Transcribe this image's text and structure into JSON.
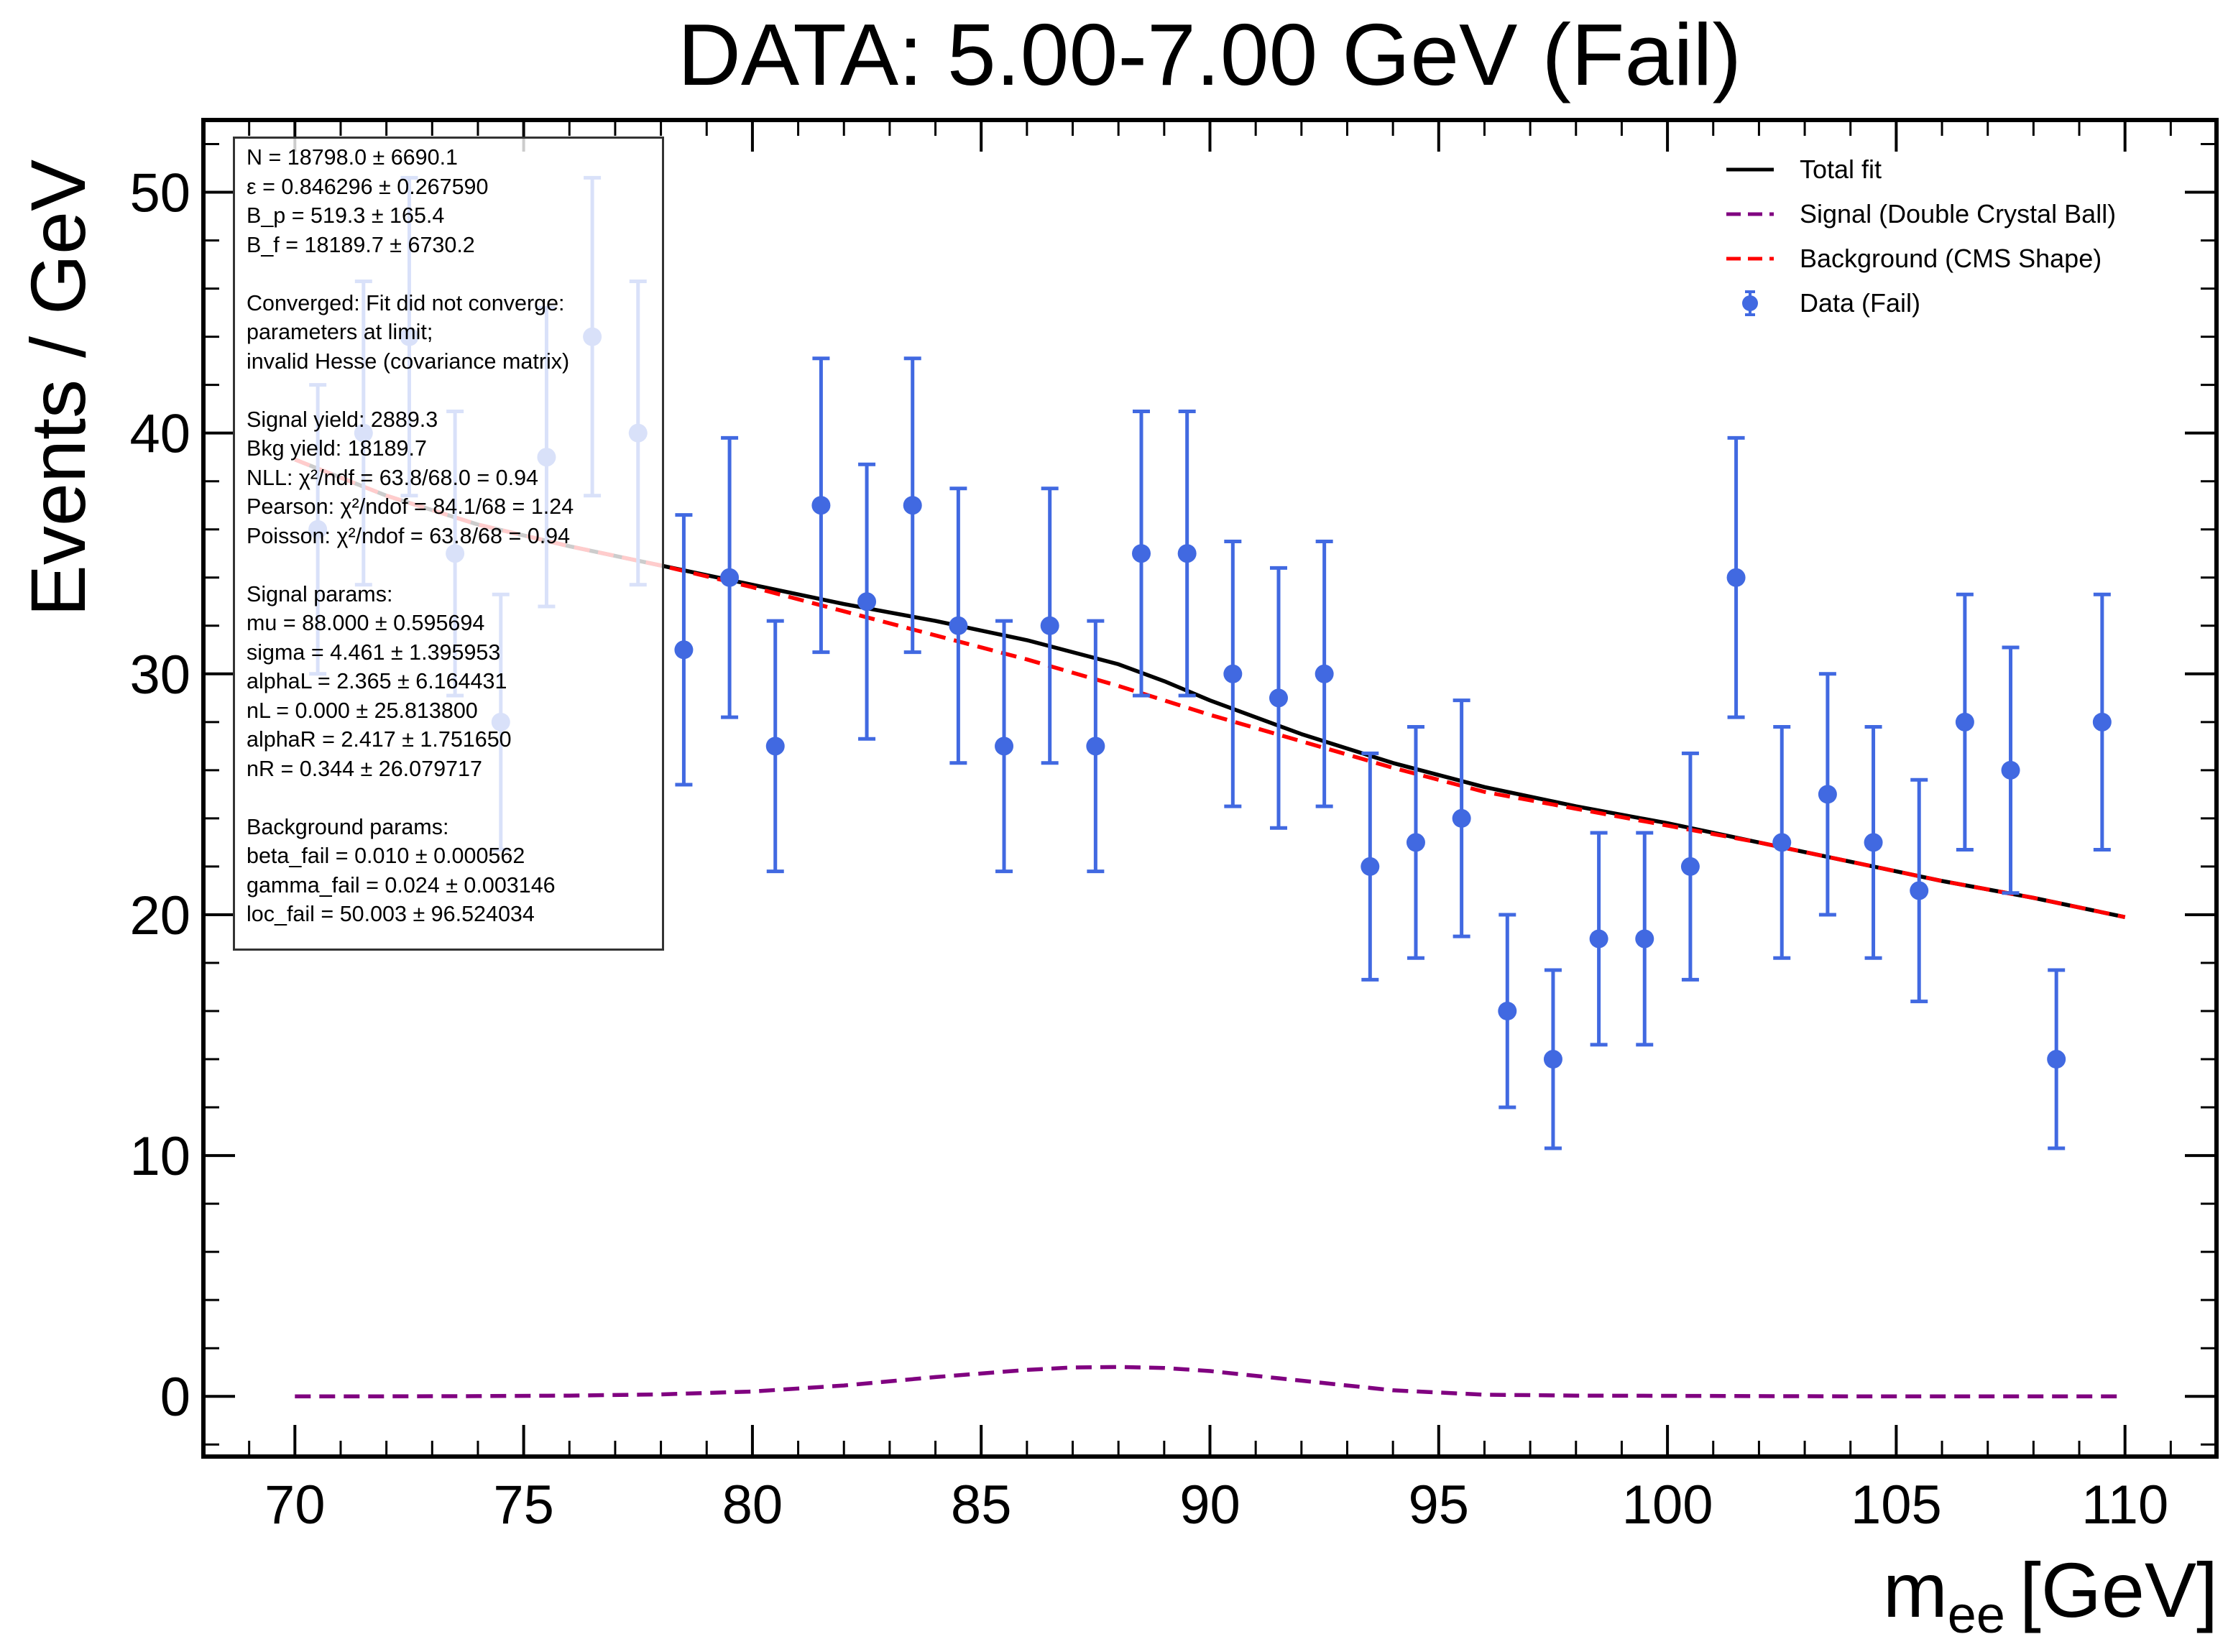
{
  "chart_data": {
    "type": "scatter",
    "title": "DATA: 5.00-7.00 GeV (Fail)",
    "xlabel_main": "m",
    "xlabel_sub": "ee",
    "xlabel_unit": "[GeV]",
    "ylabel": "Events / GeV",
    "xlim": [
      68,
      112
    ],
    "ylim": [
      -2.5,
      53
    ],
    "x_ticks": [
      70,
      75,
      80,
      85,
      90,
      95,
      100,
      105,
      110
    ],
    "y_ticks": [
      0,
      10,
      20,
      30,
      40,
      50
    ],
    "grid": false,
    "legend_position": "top-right",
    "series": [
      {
        "name": "Total fit",
        "kind": "line",
        "color": "#000000",
        "dash": "solid",
        "x": [
          70,
          72,
          74,
          76,
          78,
          80,
          82,
          84,
          86,
          88,
          89,
          90,
          92,
          94,
          96,
          98,
          100,
          102,
          104,
          106,
          108,
          110
        ],
        "y": [
          38.9,
          37.4,
          36.2,
          35.3,
          34.5,
          33.7,
          32.9,
          32.2,
          31.4,
          30.4,
          29.7,
          28.9,
          27.5,
          26.3,
          25.3,
          24.5,
          23.8,
          23.0,
          22.2,
          21.4,
          20.7,
          19.9
        ]
      },
      {
        "name": "Signal (Double Crystal Ball)",
        "kind": "line",
        "color": "#800080",
        "dash": "dashed",
        "x": [
          70,
          72,
          74,
          76,
          78,
          80,
          82,
          84,
          86,
          87,
          88,
          89,
          90,
          92,
          94,
          96,
          98,
          100,
          102,
          104,
          106,
          108,
          110
        ],
        "y": [
          0.0,
          0.0,
          0.01,
          0.03,
          0.08,
          0.2,
          0.45,
          0.8,
          1.1,
          1.2,
          1.22,
          1.18,
          1.05,
          0.65,
          0.25,
          0.07,
          0.03,
          0.02,
          0.01,
          0.0,
          0.0,
          0.0,
          0.0
        ]
      },
      {
        "name": "Background (CMS Shape)",
        "kind": "line",
        "color": "#ff0000",
        "dash": "dashed",
        "x": [
          70,
          72,
          74,
          76,
          78,
          80,
          82,
          84,
          86,
          88,
          90,
          92,
          94,
          96,
          98,
          100,
          102,
          104,
          106,
          108,
          110
        ],
        "y": [
          38.9,
          37.4,
          36.2,
          35.3,
          34.5,
          33.6,
          32.6,
          31.6,
          30.6,
          29.5,
          28.3,
          27.2,
          26.1,
          25.1,
          24.4,
          23.7,
          23.0,
          22.2,
          21.4,
          20.7,
          19.9
        ]
      },
      {
        "name": "Data (Fail)",
        "kind": "errorbar",
        "color": "#4169e1",
        "x": [
          70.5,
          71.5,
          72.5,
          73.5,
          74.5,
          75.5,
          76.5,
          77.5,
          78.5,
          79.5,
          80.5,
          81.5,
          82.5,
          83.5,
          84.5,
          85.5,
          86.5,
          87.5,
          88.5,
          89.5,
          90.5,
          91.5,
          92.5,
          93.5,
          94.5,
          95.5,
          96.5,
          97.5,
          98.5,
          99.5,
          100.5,
          101.5,
          102.5,
          103.5,
          104.5,
          105.5,
          106.5,
          107.5,
          108.5,
          109.5
        ],
        "y": [
          36,
          40,
          44,
          35,
          28,
          39,
          44,
          40,
          31,
          34,
          27,
          37,
          33,
          37,
          32,
          27,
          32,
          27,
          35,
          35,
          30,
          29,
          30,
          22,
          23,
          24,
          16,
          14,
          19,
          19,
          22,
          34,
          23,
          25,
          23,
          21,
          28,
          26,
          14,
          28
        ],
        "yerr_low": [
          6.0,
          6.3,
          6.6,
          5.9,
          5.3,
          6.2,
          6.6,
          6.3,
          5.6,
          5.8,
          5.2,
          6.1,
          5.7,
          6.1,
          5.7,
          5.2,
          5.7,
          5.2,
          5.9,
          5.9,
          5.5,
          5.4,
          5.5,
          4.7,
          4.8,
          4.9,
          4.0,
          3.7,
          4.4,
          4.4,
          4.7,
          5.8,
          4.8,
          5.0,
          4.8,
          4.6,
          5.3,
          5.1,
          3.7,
          5.3
        ],
        "yerr_high": [
          6.0,
          6.3,
          6.6,
          5.9,
          5.3,
          6.2,
          6.6,
          6.3,
          5.6,
          5.8,
          5.2,
          6.1,
          5.7,
          6.1,
          5.7,
          5.2,
          5.7,
          5.2,
          5.9,
          5.9,
          5.5,
          5.4,
          5.5,
          4.7,
          4.8,
          4.9,
          4.0,
          3.7,
          4.4,
          4.4,
          4.7,
          5.8,
          4.8,
          5.0,
          4.8,
          4.6,
          5.3,
          5.1,
          3.7,
          5.3
        ]
      }
    ],
    "annotation_lines": [
      "N = 18798.0 ± 6690.1",
      "ε = 0.846296 ± 0.267590",
      "B_p = 519.3 ± 165.4",
      "B_f = 18189.7 ± 6730.2",
      "",
      "Converged: Fit did not converge:",
      "parameters at limit;",
      "invalid Hesse (covariance matrix)",
      "",
      "Signal yield: 2889.3",
      "Bkg yield: 18189.7",
      "NLL: χ²/ndf = 63.8/68.0 = 0.94",
      "Pearson: χ²/ndof = 84.1/68 = 1.24",
      "Poisson: χ²/ndof = 63.8/68 = 0.94",
      "",
      "Signal params:",
      "mu = 88.000 ± 0.595694",
      "sigma = 4.461 ± 1.395953",
      "alphaL = 2.365 ± 6.164431",
      "nL = 0.000 ± 25.813800",
      "alphaR = 2.417 ± 1.751650",
      "nR = 0.344 ± 26.079717",
      "",
      "Background params:",
      "beta_fail = 0.010 ± 0.000562",
      "gamma_fail = 0.024 ± 0.003146",
      "loc_fail = 50.003 ± 96.524034"
    ]
  }
}
